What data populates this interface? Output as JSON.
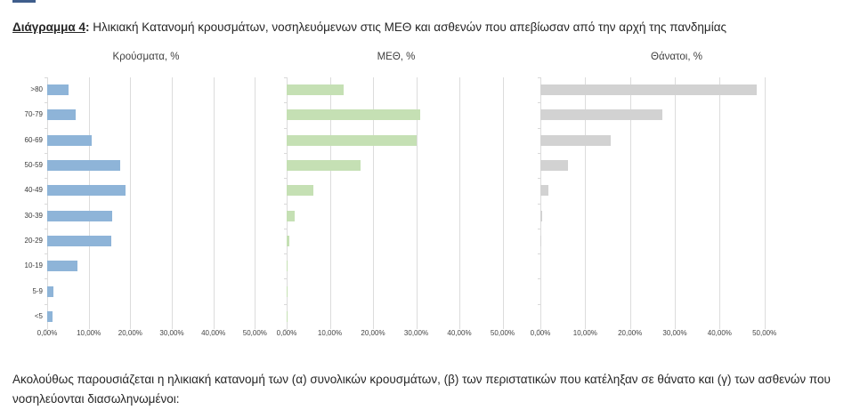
{
  "document": {
    "caption_label": "Διάγραμμα 4",
    "caption_colon": ":",
    "caption_text": " Ηλικιακή Κατανομή κρουσμάτων, νοσηλευόμενων στις ΜΕΘ και ασθενών που απεβίωσαν από την αρχή της πανδημίας",
    "footer_text": "Ακολούθως παρουσιάζεται η ηλικιακή κατανομή των (α) συνολικών κρουσμάτων, (β) των περιστατικών που κατέληξαν σε θάνατο και (γ) των ασθενών που νοσηλεύονται διασωληνωμένοι:"
  },
  "colors": {
    "clipped_fragment": "#3F5E8C",
    "gridline": "#DCDCDC",
    "tick": "#D9D9D9"
  },
  "chart_data": {
    "type": "bar",
    "orientation": "horizontal",
    "categories": [
      ">80",
      "70-79",
      "60-69",
      "50-59",
      "40-49",
      "30-39",
      "20-29",
      "10-19",
      "5-9",
      "<5"
    ],
    "x_tick_labels": [
      "0,00%",
      "10,00%",
      "20,00%",
      "30,00%",
      "40,00%",
      "50,00%"
    ],
    "x_range": [
      0,
      60
    ],
    "grid": true,
    "legend": "none",
    "panels": [
      {
        "title": "Κρούσματα, %",
        "color": "#8EB4D8",
        "values": [
          5.1,
          6.8,
          10.7,
          17.5,
          18.8,
          15.6,
          15.4,
          7.3,
          1.4,
          1.2
        ]
      },
      {
        "title": "ΜΕΘ, %",
        "color": "#C5E0B4",
        "values": [
          13.2,
          30.9,
          30.0,
          17.2,
          6.1,
          1.9,
          0.7,
          0.2,
          0.1,
          0.1
        ]
      },
      {
        "title": "Θάνατοι, %",
        "color": "#D2D2D2",
        "values": [
          48.2,
          27.3,
          15.7,
          6.2,
          1.7,
          0.4,
          0.1,
          0,
          0,
          0
        ]
      }
    ]
  }
}
